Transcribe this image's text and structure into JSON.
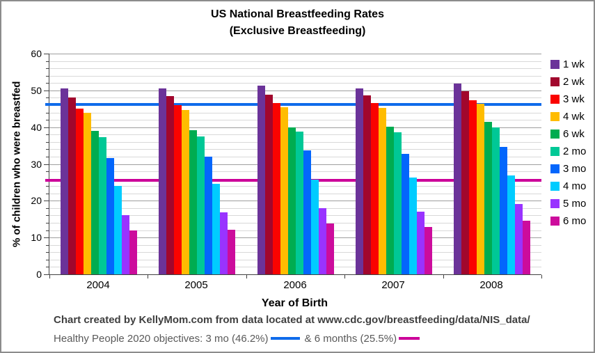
{
  "figure": {
    "title_line1": "US National Breastfeeding Rates",
    "title_line2": "(Exclusive Breastfeeding)"
  },
  "chart_data": {
    "type": "bar",
    "title": "US National Breastfeeding Rates (Exclusive Breastfeeding)",
    "xlabel": "Year of Birth",
    "ylabel": "% of children who were breastfed",
    "ylim": [
      0,
      60
    ],
    "y_ticks": [
      0,
      10,
      20,
      30,
      40,
      50,
      60
    ],
    "y_major_step": 10,
    "y_minor_step": 2,
    "grid": true,
    "legend_position": "right",
    "categories": [
      "2004",
      "2005",
      "2006",
      "2007",
      "2008"
    ],
    "series": [
      {
        "name": "1 wk",
        "color": "#6B3399",
        "values": [
          50.5,
          50.6,
          51.2,
          50.6,
          51.8
        ]
      },
      {
        "name": "2 wk",
        "color": "#A1072D",
        "values": [
          48.0,
          48.5,
          48.9,
          48.7,
          49.8
        ]
      },
      {
        "name": "3 wk",
        "color": "#FA0300",
        "values": [
          45.1,
          45.9,
          46.5,
          46.5,
          47.4
        ]
      },
      {
        "name": "4 wk",
        "color": "#FFBC00",
        "values": [
          43.9,
          44.6,
          45.4,
          45.2,
          46.4
        ]
      },
      {
        "name": "6 wk",
        "color": "#00AC50",
        "values": [
          38.9,
          39.1,
          40.0,
          40.1,
          41.4
        ]
      },
      {
        "name": "2 mo",
        "color": "#00C896",
        "values": [
          37.2,
          37.5,
          38.8,
          38.7,
          39.9
        ]
      },
      {
        "name": "3 mo",
        "color": "#0366FC",
        "values": [
          31.6,
          31.9,
          33.6,
          32.8,
          34.6
        ]
      },
      {
        "name": "4 mo",
        "color": "#00CCFF",
        "values": [
          24.1,
          24.7,
          25.8,
          26.3,
          26.9
        ]
      },
      {
        "name": "5 mo",
        "color": "#9933FF",
        "values": [
          16.1,
          16.8,
          17.9,
          17.1,
          19.1
        ]
      },
      {
        "name": "6 mo",
        "color": "#CC0C9C",
        "values": [
          12.0,
          12.1,
          13.9,
          12.9,
          14.5
        ]
      }
    ],
    "reference_lines": [
      {
        "label": "3 mo (46.2%)",
        "value": 46.2,
        "color": "#0F6BEB"
      },
      {
        "label": "6 months (25.5%)",
        "value": 25.5,
        "color": "#CC0099"
      }
    ]
  },
  "footer": {
    "line1": "Chart created by KellyMom.com from data located at www.cdc.gov/breastfeeding/data/NIS_data/",
    "line2_prefix": "Healthy People 2020 objectives: 3 mo (46.2%)",
    "line2_suffix": "& 6 months (25.5%)"
  }
}
